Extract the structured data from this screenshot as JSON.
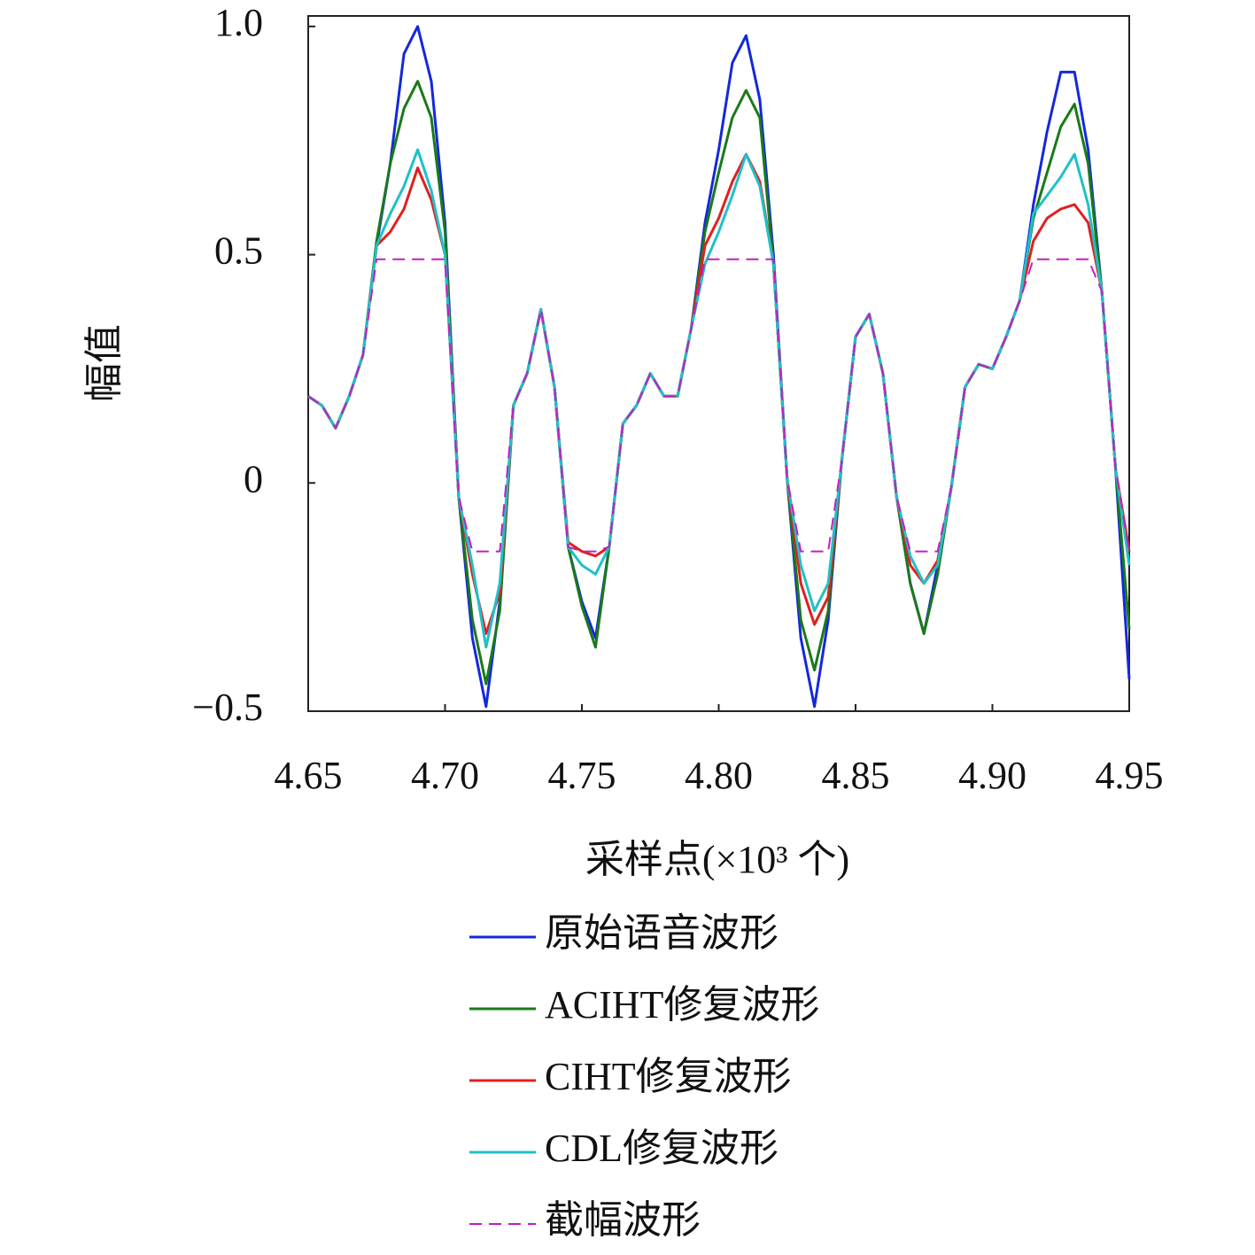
{
  "chart_data": {
    "type": "line",
    "xlabel": "采样点(×10³ 个)",
    "ylabel": "幅值",
    "xlim": [
      4.65,
      4.95
    ],
    "ylim": [
      -0.5,
      1.023
    ],
    "xticks": [
      4.65,
      {
        "value": 4.7,
        "label": "4.70"
      },
      4.75,
      {
        "value": 4.8,
        "label": "4.80"
      },
      4.85,
      {
        "value": 4.9,
        "label": "4.90"
      },
      4.95
    ],
    "yticks": [
      {
        "value": -0.5,
        "label": "−0.5"
      },
      0,
      0.5,
      {
        "value": 1.0,
        "label": "1.0"
      }
    ],
    "x": [
      4.65,
      4.655,
      4.66,
      4.665,
      4.67,
      4.675,
      4.68,
      4.685,
      4.69,
      4.695,
      4.7,
      4.705,
      4.71,
      4.715,
      4.72,
      4.725,
      4.73,
      4.735,
      4.74,
      4.745,
      4.75,
      4.755,
      4.76,
      4.765,
      4.77,
      4.775,
      4.78,
      4.785,
      4.79,
      4.795,
      4.8,
      4.805,
      4.81,
      4.815,
      4.82,
      4.825,
      4.83,
      4.835,
      4.84,
      4.845,
      4.85,
      4.855,
      4.86,
      4.865,
      4.87,
      4.875,
      4.88,
      4.885,
      4.89,
      4.895,
      4.9,
      4.905,
      4.91,
      4.915,
      4.92,
      4.925,
      4.93,
      4.935,
      4.94,
      4.945,
      4.95
    ],
    "series": [
      {
        "name": "原始语音波形",
        "color": "#1428dc",
        "linestyle": "solid",
        "values": [
          0.19,
          0.17,
          0.12,
          0.19,
          0.28,
          0.52,
          0.7,
          0.94,
          1.0,
          0.88,
          0.57,
          -0.03,
          -0.34,
          -0.49,
          -0.26,
          0.17,
          0.24,
          0.38,
          0.21,
          -0.14,
          -0.26,
          -0.34,
          -0.14,
          0.13,
          0.17,
          0.24,
          0.19,
          0.19,
          0.34,
          0.57,
          0.73,
          0.92,
          0.98,
          0.84,
          0.5,
          0.01,
          -0.34,
          -0.49,
          -0.3,
          0.05,
          0.32,
          0.37,
          0.24,
          -0.03,
          -0.22,
          -0.33,
          -0.18,
          -0.01,
          0.21,
          0.26,
          0.25,
          0.32,
          0.4,
          0.61,
          0.77,
          0.9,
          0.9,
          0.73,
          0.42,
          0.03,
          -0.43
        ]
      },
      {
        "name": "ACIHT修复波形",
        "color": "#1a7a1a",
        "linestyle": "solid",
        "values": [
          0.19,
          0.17,
          0.12,
          0.19,
          0.28,
          0.53,
          0.7,
          0.82,
          0.88,
          0.8,
          0.55,
          -0.03,
          -0.3,
          -0.44,
          -0.28,
          0.17,
          0.24,
          0.38,
          0.21,
          -0.14,
          -0.27,
          -0.36,
          -0.14,
          0.13,
          0.17,
          0.24,
          0.19,
          0.19,
          0.34,
          0.55,
          0.68,
          0.8,
          0.86,
          0.8,
          0.48,
          0.01,
          -0.3,
          -0.41,
          -0.28,
          0.05,
          0.32,
          0.37,
          0.24,
          -0.03,
          -0.22,
          -0.33,
          -0.2,
          -0.01,
          0.21,
          0.26,
          0.25,
          0.32,
          0.4,
          0.58,
          0.68,
          0.78,
          0.83,
          0.7,
          0.42,
          0.03,
          -0.32
        ]
      },
      {
        "name": "CIHT修复波形",
        "color": "#e02020",
        "linestyle": "solid",
        "values": [
          0.19,
          0.17,
          0.12,
          0.19,
          0.28,
          0.52,
          0.55,
          0.6,
          0.69,
          0.62,
          0.5,
          -0.03,
          -0.2,
          -0.33,
          -0.24,
          0.17,
          0.24,
          0.38,
          0.21,
          -0.13,
          -0.15,
          -0.16,
          -0.14,
          0.13,
          0.17,
          0.24,
          0.19,
          0.19,
          0.34,
          0.52,
          0.58,
          0.66,
          0.72,
          0.66,
          0.48,
          0.01,
          -0.22,
          -0.31,
          -0.25,
          0.05,
          0.32,
          0.37,
          0.24,
          -0.03,
          -0.18,
          -0.22,
          -0.17,
          -0.01,
          0.21,
          0.26,
          0.25,
          0.32,
          0.4,
          0.53,
          0.58,
          0.6,
          0.61,
          0.57,
          0.42,
          0.03,
          -0.15
        ]
      },
      {
        "name": "CDL修复波形",
        "color": "#20c0c8",
        "linestyle": "solid",
        "values": [
          0.19,
          0.17,
          0.12,
          0.19,
          0.28,
          0.52,
          0.59,
          0.65,
          0.73,
          0.64,
          0.5,
          -0.03,
          -0.18,
          -0.36,
          -0.22,
          0.17,
          0.24,
          0.38,
          0.21,
          -0.14,
          -0.18,
          -0.2,
          -0.14,
          0.13,
          0.17,
          0.24,
          0.19,
          0.19,
          0.34,
          0.48,
          0.55,
          0.63,
          0.72,
          0.65,
          0.48,
          0.01,
          -0.18,
          -0.28,
          -0.22,
          0.05,
          0.32,
          0.37,
          0.24,
          -0.03,
          -0.16,
          -0.22,
          -0.18,
          -0.01,
          0.21,
          0.26,
          0.25,
          0.32,
          0.4,
          0.59,
          0.63,
          0.67,
          0.72,
          0.61,
          0.42,
          0.03,
          -0.18
        ]
      },
      {
        "name": "截幅波形",
        "color": "#c020c0",
        "linestyle": "dashed",
        "values": [
          0.19,
          0.17,
          0.12,
          0.19,
          0.28,
          0.49,
          0.49,
          0.49,
          0.49,
          0.49,
          0.49,
          -0.03,
          -0.15,
          -0.15,
          -0.15,
          0.17,
          0.24,
          0.38,
          0.21,
          -0.14,
          -0.15,
          -0.15,
          -0.14,
          0.13,
          0.17,
          0.24,
          0.19,
          0.19,
          0.34,
          0.49,
          0.49,
          0.49,
          0.49,
          0.49,
          0.49,
          0.01,
          -0.15,
          -0.15,
          -0.15,
          0.05,
          0.32,
          0.37,
          0.24,
          -0.03,
          -0.15,
          -0.15,
          -0.15,
          -0.01,
          0.21,
          0.26,
          0.25,
          0.32,
          0.4,
          0.49,
          0.49,
          0.49,
          0.49,
          0.49,
          0.42,
          0.03,
          -0.15
        ]
      }
    ]
  }
}
